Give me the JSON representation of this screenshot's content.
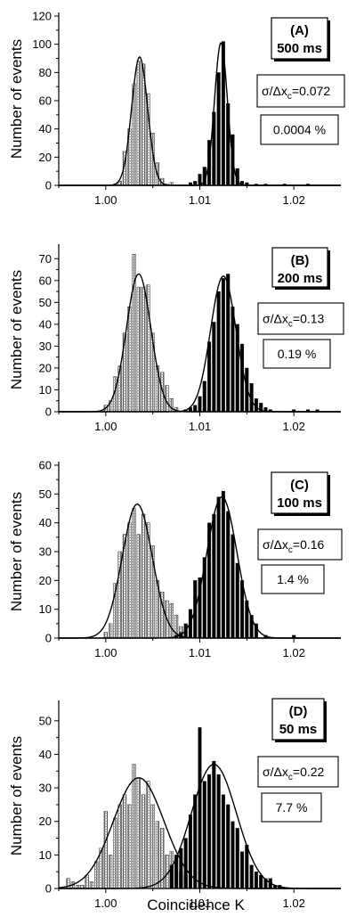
{
  "figure": {
    "xlabel": "Coincidence K"
  },
  "chart_data": [
    {
      "type": "bar",
      "ylabel": "Number of events",
      "xlim": [
        0.995,
        1.025
      ],
      "ylim": [
        0,
        120
      ],
      "yticks": [
        0,
        20,
        40,
        60,
        80,
        100,
        120
      ],
      "xticks": [
        "1.00",
        "1.01",
        "1.02"
      ],
      "panel_label": "(A)",
      "time_label": "500 ms",
      "sigma_label": "σ/Δx",
      "sigma_sub": "c",
      "sigma_value": "=0.072",
      "percent_label": "0.0004 %",
      "series": [
        {
          "x": [
            1.001,
            1.0015,
            1.002,
            1.0025,
            1.003,
            1.0035,
            1.004,
            1.0045,
            1.005,
            1.0055,
            1.006,
            1.0065,
            1.007
          ],
          "values": [
            1,
            3,
            24,
            40,
            72,
            88,
            86,
            65,
            37,
            16,
            5,
            1,
            2
          ]
        },
        {
          "x": [
            1.009,
            1.0095,
            1.01,
            1.0105,
            1.011,
            1.0115,
            1.012,
            1.0125,
            1.013,
            1.0135,
            1.014,
            1.0145,
            1.015,
            1.016,
            1.017,
            1.019,
            1.0215
          ],
          "values": [
            2,
            3,
            8,
            13,
            32,
            52,
            80,
            102,
            58,
            36,
            12,
            3,
            2,
            1,
            1,
            1,
            1
          ]
        }
      ],
      "fits": [
        {
          "mean": 1.0036,
          "sigma": 0.00085,
          "amplitude": 91
        },
        {
          "mean": 1.01225,
          "sigma": 0.00068,
          "amplitude": 101
        }
      ]
    },
    {
      "type": "bar",
      "ylabel": "Number of events",
      "xlim": [
        0.995,
        1.025
      ],
      "ylim": [
        0,
        75
      ],
      "yticks": [
        0,
        10,
        20,
        30,
        40,
        50,
        60,
        70
      ],
      "xticks": [
        "1.00",
        "1.01",
        "1.02"
      ],
      "panel_label": "(B)",
      "time_label": "200 ms",
      "sigma_label": "σ/Δx",
      "sigma_sub": "c",
      "sigma_value": "=0.13",
      "percent_label": "0.19 %",
      "series": [
        {
          "x": [
            1.0,
            1.0005,
            1.001,
            1.0015,
            1.002,
            1.0025,
            1.003,
            1.0035,
            1.004,
            1.0045,
            1.005,
            1.0055,
            1.006,
            1.0065,
            1.007,
            1.0075
          ],
          "values": [
            3,
            5,
            16,
            21,
            36,
            48,
            72,
            57,
            57,
            58,
            36,
            21,
            18,
            12,
            6,
            2
          ]
        },
        {
          "x": [
            1.0085,
            1.009,
            1.0095,
            1.01,
            1.0105,
            1.011,
            1.0115,
            1.012,
            1.0125,
            1.013,
            1.0135,
            1.014,
            1.0145,
            1.015,
            1.0155,
            1.016,
            1.0165,
            1.017,
            1.0175,
            1.02,
            1.0215,
            1.0225
          ],
          "values": [
            1,
            2,
            3,
            7,
            14,
            32,
            41,
            55,
            61,
            63,
            48,
            40,
            31,
            20,
            13,
            6,
            4,
            2,
            1,
            1,
            1,
            1
          ]
        }
      ],
      "fits": [
        {
          "mean": 1.0035,
          "sigma": 0.0013,
          "amplitude": 63
        },
        {
          "mean": 1.0125,
          "sigma": 0.00135,
          "amplitude": 62
        }
      ]
    },
    {
      "type": "bar",
      "ylabel": "Number of events",
      "xlim": [
        0.995,
        1.025
      ],
      "ylim": [
        0,
        60
      ],
      "yticks": [
        0,
        10,
        20,
        30,
        40,
        50,
        60
      ],
      "xticks": [
        "1.00",
        "1.01",
        "1.02"
      ],
      "panel_label": "(C)",
      "time_label": "100 ms",
      "sigma_label": "σ/Δx",
      "sigma_sub": "c",
      "sigma_value": "=0.16",
      "percent_label": "1.4 %",
      "series": [
        {
          "x": [
            1.0,
            1.0005,
            1.001,
            1.0015,
            1.002,
            1.0025,
            1.003,
            1.0035,
            1.004,
            1.0045,
            1.005,
            1.0055,
            1.006,
            1.0065,
            1.007,
            1.0075,
            1.008
          ],
          "values": [
            2,
            5,
            19,
            30,
            36,
            40,
            45,
            36,
            43,
            40,
            32,
            20,
            16,
            13,
            12,
            8,
            4
          ]
        },
        {
          "x": [
            1.0075,
            1.008,
            1.0085,
            1.009,
            1.0095,
            1.01,
            1.0105,
            1.011,
            1.0115,
            1.012,
            1.0125,
            1.013,
            1.0135,
            1.014,
            1.0145,
            1.015,
            1.0155,
            1.016,
            1.017,
            1.02
          ],
          "values": [
            1,
            2,
            5,
            10,
            20,
            21,
            28,
            40,
            43,
            49,
            51,
            44,
            36,
            26,
            20,
            13,
            8,
            5,
            1,
            1
          ]
        }
      ],
      "fits": [
        {
          "mean": 1.00335,
          "sigma": 0.0016,
          "amplitude": 46.5
        },
        {
          "mean": 1.01235,
          "sigma": 0.0016,
          "amplitude": 49
        }
      ]
    },
    {
      "type": "bar",
      "ylabel": "Number of events",
      "xlim": [
        0.995,
        1.025
      ],
      "ylim": [
        0,
        55
      ],
      "yticks": [
        0,
        10,
        20,
        30,
        40,
        50
      ],
      "xticks": [
        "1.00",
        "1.01",
        "1.02"
      ],
      "panel_label": "(D)",
      "time_label": "50 ms",
      "sigma_label": "σ/Δx",
      "sigma_sub": "c",
      "sigma_value": "=0.22",
      "percent_label": "7.7 %",
      "series": [
        {
          "x": [
            0.996,
            0.9965,
            0.997,
            0.9975,
            0.998,
            0.9985,
            0.999,
            0.9995,
            1.0,
            1.0005,
            1.001,
            1.0015,
            1.002,
            1.0025,
            1.003,
            1.0035,
            1.004,
            1.0045,
            1.005,
            1.0055,
            1.006,
            1.0065,
            1.007,
            1.0075,
            1.008,
            1.0085
          ],
          "values": [
            3,
            2,
            1,
            1,
            4,
            2,
            8,
            12,
            23,
            10,
            21,
            25,
            28,
            25,
            37,
            33,
            28,
            32,
            25,
            20,
            18,
            10,
            11,
            9,
            5,
            4
          ]
        },
        {
          "x": [
            1.007,
            1.0075,
            1.008,
            1.0085,
            1.009,
            1.0095,
            1.01,
            1.0105,
            1.011,
            1.0115,
            1.012,
            1.0125,
            1.013,
            1.0135,
            1.014,
            1.0145,
            1.015,
            1.0155,
            1.016,
            1.0165,
            1.017,
            1.0175,
            1.018,
            1.0185
          ],
          "values": [
            7,
            10,
            12,
            15,
            22,
            28,
            48,
            32,
            34,
            38,
            34,
            28,
            25,
            20,
            18,
            11,
            13,
            7,
            5,
            4,
            3,
            3,
            1,
            1
          ]
        }
      ],
      "fits": [
        {
          "mean": 1.0035,
          "sigma": 0.0027,
          "amplitude": 33
        },
        {
          "mean": 1.0115,
          "sigma": 0.0024,
          "amplitude": 37
        }
      ]
    }
  ]
}
